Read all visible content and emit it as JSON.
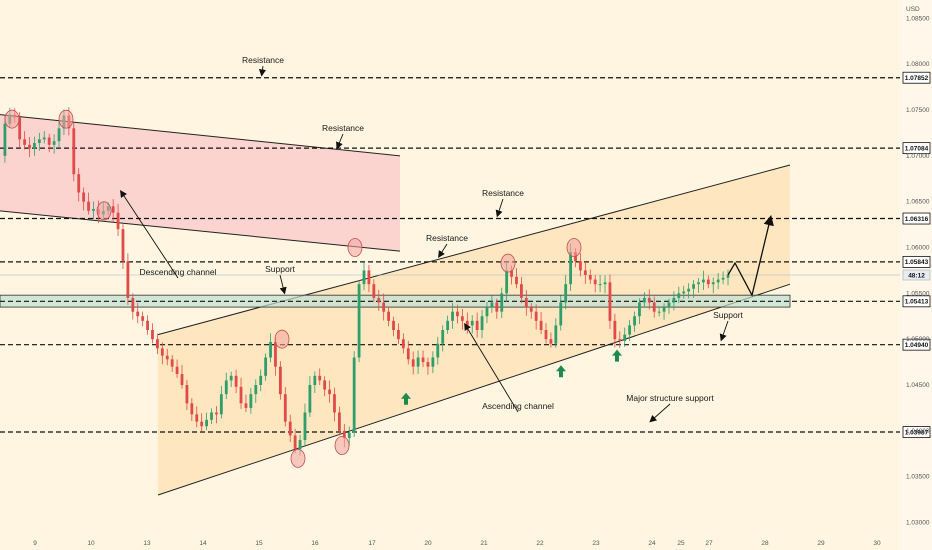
{
  "chart_data": {
    "type": "candlestick",
    "currency_label": "USD",
    "ylim": [
      1.027,
      1.087
    ],
    "y_ticks": [
      1.03,
      1.035,
      1.04,
      1.045,
      1.05,
      1.055,
      1.06,
      1.065,
      1.07,
      1.075,
      1.08,
      1.085
    ],
    "y_tick_labels": [
      "1.03000",
      "1.03500",
      "1.04000",
      "1.04500",
      "1.05000",
      "1.05500",
      "1.06000",
      "1.06500",
      "1.07000",
      "1.07500",
      "1.08000",
      "1.08500"
    ],
    "x_tick_labels": [
      "9",
      "10",
      "13",
      "14",
      "15",
      "16",
      "17",
      "20",
      "21",
      "22",
      "23",
      "24",
      "25",
      "27",
      "28",
      "29",
      "30"
    ],
    "levels": [
      {
        "value": 1.07852,
        "label": "1.07852",
        "style": "boxed"
      },
      {
        "value": 1.07084,
        "label": "1.07084",
        "style": "boxed"
      },
      {
        "value": 1.06316,
        "label": "1.06316",
        "style": "boxed"
      },
      {
        "value": 1.05843,
        "label": "1.05843",
        "style": "boxed"
      },
      {
        "value": 1.05413,
        "label": "1.05413",
        "style": "boxed"
      },
      {
        "value": 1.0494,
        "label": "1.04940",
        "style": "boxed"
      },
      {
        "value": 1.03987,
        "label": "1.03987",
        "style": "boxed"
      }
    ],
    "current_price": {
      "label": "48:12",
      "value": 1.057
    },
    "support_zone": [
      1.0535,
      1.0548
    ],
    "descending_channel": {
      "upper": [
        [
          1.0745
        ],
        [
          1.07
        ]
      ],
      "lower": [
        [
          1.064
        ],
        [
          1.0596
        ]
      ]
    },
    "ascending_channel": {
      "upper": [
        [
          1.0505
        ],
        [
          1.069
        ]
      ],
      "lower": [
        [
          1.033
        ],
        [
          1.056
        ]
      ]
    },
    "annotations": [
      {
        "text": "Resistance"
      },
      {
        "text": "Resistance"
      },
      {
        "text": "Resistance"
      },
      {
        "text": "Resistance"
      },
      {
        "text": "Support"
      },
      {
        "text": "Support"
      },
      {
        "text": "Descending channel"
      },
      {
        "text": "Ascending channel"
      },
      {
        "text": "Major structure support"
      }
    ],
    "series": [
      1.07,
      1.0735,
      1.0745,
      1.0742,
      1.0718,
      1.0712,
      1.0708,
      1.0714,
      1.0718,
      1.072,
      1.0712,
      1.0716,
      1.073,
      1.0744,
      1.073,
      1.068,
      1.066,
      1.065,
      1.064,
      1.0642,
      1.0636,
      1.064,
      1.0645,
      1.0638,
      1.062,
      1.0585,
      1.0545,
      1.053,
      1.0525,
      1.052,
      1.051,
      1.05,
      1.049,
      1.0482,
      1.0478,
      1.047,
      1.0462,
      1.045,
      1.043,
      1.0418,
      1.041,
      1.0405,
      1.0412,
      1.042,
      1.0418,
      1.044,
      1.0455,
      1.046,
      1.0448,
      1.043,
      1.0425,
      1.044,
      1.045,
      1.046,
      1.048,
      1.0497,
      1.047,
      1.044,
      1.041,
      1.0395,
      1.038,
      1.039,
      1.042,
      1.045,
      1.046,
      1.0455,
      1.0445,
      1.044,
      1.042,
      1.04,
      1.0392,
      1.0398,
      1.048,
      1.056,
      1.0575,
      1.056,
      1.0545,
      1.054,
      1.053,
      1.052,
      1.051,
      1.05,
      1.049,
      1.0478,
      1.047,
      1.048,
      1.0475,
      1.047,
      1.048,
      1.0495,
      1.051,
      1.052,
      1.053,
      1.0525,
      1.052,
      1.0515,
      1.052,
      1.051,
      1.0525,
      1.0535,
      1.054,
      1.053,
      1.055,
      1.0575,
      1.0568,
      1.056,
      1.0545,
      1.0535,
      1.053,
      1.052,
      1.051,
      1.05,
      1.0495,
      1.0515,
      1.054,
      1.056,
      1.0595,
      1.0585,
      1.0575,
      1.057,
      1.0565,
      1.056,
      1.056,
      1.0562,
      1.052,
      1.05,
      1.0498,
      1.0505,
      1.0515,
      1.0525,
      1.054,
      1.0545,
      1.054,
      1.053,
      1.053,
      1.0535,
      1.054,
      1.0545,
      1.055,
      1.0552,
      1.0555,
      1.056,
      1.0562,
      1.0565,
      1.056,
      1.0562,
      1.0565,
      1.0567,
      1.057
    ],
    "projection": [
      1.0583,
      1.0548,
      1.063
    ]
  }
}
